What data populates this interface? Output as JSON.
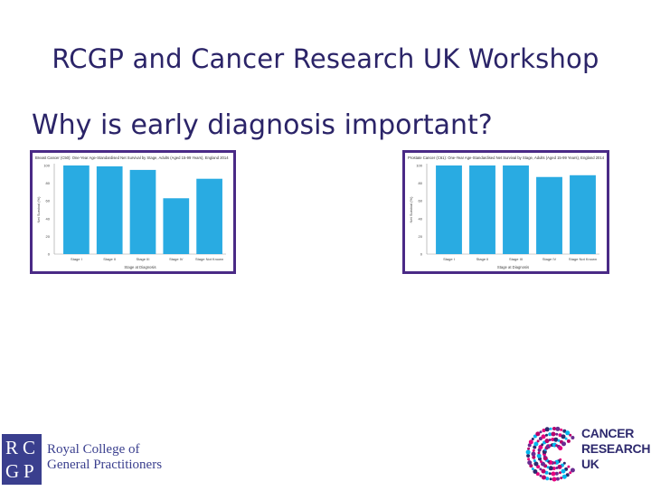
{
  "slide": {
    "title": "RCGP and Cancer Research UK Workshop",
    "subtitle": "Why is early diagnosis important?"
  },
  "chart_data": [
    {
      "type": "bar",
      "title": "Breast Cancer (C50): One-Year Age-Standardised Net Survival by Stage, Adults (Aged 15-99 Years), England 2014",
      "xlabel": "Stage at Diagnosis",
      "ylabel": "Net Survival (%)",
      "categories": [
        "Stage I",
        "Stage II",
        "Stage III",
        "Stage IV",
        "Stage Not Known"
      ],
      "values": [
        100,
        99,
        95,
        63,
        85
      ],
      "ylim": [
        0,
        100
      ],
      "yticks": [
        "0",
        "20",
        "40",
        "60",
        "80",
        "100"
      ],
      "grid": false,
      "bar_color": "#29abe2"
    },
    {
      "type": "bar",
      "title": "Prostate Cancer (C61): One-Year Age-Standardised Net Survival by Stage, Adults (Aged 15-99 Years), England 2014",
      "xlabel": "Stage at Diagnosis",
      "ylabel": "Net Survival (%)",
      "categories": [
        "Stage I",
        "Stage II",
        "Stage III",
        "Stage IV",
        "Stage Not Known"
      ],
      "values": [
        100,
        100,
        100,
        87,
        89
      ],
      "ylim": [
        0,
        100
      ],
      "yticks": [
        "0",
        "20",
        "40",
        "60",
        "80",
        "100"
      ],
      "grid": false,
      "bar_color": "#29abe2"
    }
  ],
  "logos": {
    "rcgp": {
      "letters": [
        "R",
        "C",
        "G",
        "P"
      ],
      "line1": "Royal College of",
      "line2": "General Practitioners",
      "color": "#3a3f8e"
    },
    "cruk": {
      "line1": "CANCER",
      "line2": "RESEARCH",
      "line3": "UK",
      "color": "#2e2a6e"
    }
  }
}
